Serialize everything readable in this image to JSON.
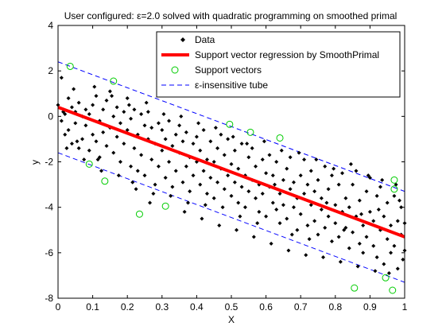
{
  "chart_data": {
    "type": "scatter",
    "title": "User configured: ε=2.0 solved with quadratic programming on smoothed primal",
    "xlabel": "X",
    "ylabel": "y",
    "xlim": [
      0,
      1
    ],
    "ylim": [
      -8,
      4
    ],
    "xticks": [
      "0",
      "0.1",
      "0.2",
      "0.3",
      "0.4",
      "0.5",
      "0.6",
      "0.7",
      "0.8",
      "0.9",
      "1"
    ],
    "yticks": [
      "4",
      "2",
      "0",
      "-2",
      "-4",
      "-6",
      "-8"
    ],
    "grid": false,
    "legend_position": "top-right",
    "legend": [
      "Data",
      "Support vector regression by SmoothPrimal",
      "Support vectors",
      "ε-insensitive tube"
    ],
    "regression_line": {
      "x": [
        0,
        1
      ],
      "y": [
        0.4,
        -5.3
      ],
      "color": "#ff0000"
    },
    "tube_upper": {
      "x": [
        0,
        1
      ],
      "y": [
        2.4,
        -3.3
      ],
      "color": "#0000ff"
    },
    "tube_lower": {
      "x": [
        0,
        1
      ],
      "y": [
        -1.6,
        -7.3
      ],
      "color": "#0000ff"
    },
    "support_vectors": {
      "color": "#00cc00",
      "points": [
        [
          0.035,
          2.2
        ],
        [
          0.16,
          1.55
        ],
        [
          0.09,
          -2.1
        ],
        [
          0.135,
          -2.85
        ],
        [
          0.235,
          -4.3
        ],
        [
          0.31,
          -3.95
        ],
        [
          0.495,
          -0.35
        ],
        [
          0.555,
          -0.7
        ],
        [
          0.64,
          -0.95
        ],
        [
          0.855,
          -7.55
        ],
        [
          0.945,
          -7.1
        ],
        [
          0.965,
          -7.65
        ],
        [
          0.97,
          -2.8
        ],
        [
          0.97,
          -3.2
        ]
      ]
    },
    "data_points": [
      [
        0.0,
        0.5
      ],
      [
        0.01,
        1.7
      ],
      [
        0.01,
        -0.2
      ],
      [
        0.015,
        0.2
      ],
      [
        0.02,
        -0.8
      ],
      [
        0.02,
        0.1
      ],
      [
        0.03,
        -0.6
      ],
      [
        0.03,
        0.8
      ],
      [
        0.04,
        -1.2
      ],
      [
        0.04,
        0.4
      ],
      [
        0.05,
        -0.3
      ],
      [
        0.05,
        0.2
      ],
      [
        0.06,
        -1.4
      ],
      [
        0.06,
        0.6
      ],
      [
        0.07,
        0.0
      ],
      [
        0.07,
        -1.0
      ],
      [
        0.08,
        -0.4
      ],
      [
        0.08,
        0.3
      ],
      [
        0.09,
        -1.5
      ],
      [
        0.09,
        0.1
      ],
      [
        0.1,
        -0.8
      ],
      [
        0.1,
        0.5
      ],
      [
        0.11,
        -1.1
      ],
      [
        0.11,
        0.9
      ],
      [
        0.12,
        -0.2
      ],
      [
        0.12,
        -1.8
      ],
      [
        0.13,
        0.3
      ],
      [
        0.13,
        -0.7
      ],
      [
        0.14,
        -1.3
      ],
      [
        0.14,
        0.7
      ],
      [
        0.15,
        -0.5
      ],
      [
        0.15,
        1.1
      ],
      [
        0.16,
        -1.6
      ],
      [
        0.16,
        0.0
      ],
      [
        0.17,
        -0.9
      ],
      [
        0.17,
        0.4
      ],
      [
        0.18,
        -2.0
      ],
      [
        0.18,
        -0.3
      ],
      [
        0.19,
        0.2
      ],
      [
        0.19,
        -1.2
      ],
      [
        0.2,
        -0.6
      ],
      [
        0.2,
        0.8
      ],
      [
        0.21,
        -2.2
      ],
      [
        0.21,
        -0.1
      ],
      [
        0.22,
        -1.4
      ],
      [
        0.22,
        0.3
      ],
      [
        0.23,
        -0.8
      ],
      [
        0.23,
        -2.4
      ],
      [
        0.24,
        0.1
      ],
      [
        0.24,
        -1.7
      ],
      [
        0.25,
        -0.4
      ],
      [
        0.25,
        -2.6
      ],
      [
        0.26,
        -1.0
      ],
      [
        0.26,
        0.2
      ],
      [
        0.27,
        -1.9
      ],
      [
        0.27,
        -0.5
      ],
      [
        0.28,
        -3.0
      ],
      [
        0.28,
        -1.2
      ],
      [
        0.29,
        -0.3
      ],
      [
        0.29,
        -2.2
      ],
      [
        0.3,
        -1.5
      ],
      [
        0.3,
        -0.6
      ],
      [
        0.31,
        -2.7
      ],
      [
        0.31,
        -1.0
      ],
      [
        0.32,
        -0.2
      ],
      [
        0.32,
        -2.0
      ],
      [
        0.33,
        -1.3
      ],
      [
        0.33,
        -3.1
      ],
      [
        0.34,
        -0.8
      ],
      [
        0.34,
        -2.4
      ],
      [
        0.35,
        -1.6
      ],
      [
        0.35,
        -0.4
      ],
      [
        0.36,
        -2.9
      ],
      [
        0.36,
        -1.1
      ],
      [
        0.37,
        -2.2
      ],
      [
        0.37,
        -0.7
      ],
      [
        0.38,
        -1.8
      ],
      [
        0.38,
        -3.3
      ],
      [
        0.39,
        -1.2
      ],
      [
        0.39,
        -2.6
      ],
      [
        0.4,
        -0.9
      ],
      [
        0.4,
        -2.0
      ],
      [
        0.41,
        -3.0
      ],
      [
        0.41,
        -1.5
      ],
      [
        0.42,
        -2.4
      ],
      [
        0.42,
        -0.6
      ],
      [
        0.43,
        -1.9
      ],
      [
        0.43,
        -3.4
      ],
      [
        0.44,
        -1.1
      ],
      [
        0.44,
        -2.7
      ],
      [
        0.45,
        -2.0
      ],
      [
        0.45,
        -3.6
      ],
      [
        0.46,
        -1.4
      ],
      [
        0.46,
        -2.9
      ],
      [
        0.47,
        -0.8
      ],
      [
        0.47,
        -2.3
      ],
      [
        0.48,
        -3.2
      ],
      [
        0.48,
        -1.7
      ],
      [
        0.49,
        -2.6
      ],
      [
        0.49,
        -1.0
      ],
      [
        0.5,
        -3.5
      ],
      [
        0.5,
        -2.1
      ],
      [
        0.51,
        -1.5
      ],
      [
        0.51,
        -2.9
      ],
      [
        0.52,
        -3.8
      ],
      [
        0.52,
        -2.3
      ],
      [
        0.53,
        -1.2
      ],
      [
        0.53,
        -3.1
      ],
      [
        0.54,
        -2.6
      ],
      [
        0.54,
        -4.0
      ],
      [
        0.55,
        -1.8
      ],
      [
        0.55,
        -3.3
      ],
      [
        0.56,
        -2.8
      ],
      [
        0.56,
        -1.4
      ],
      [
        0.57,
        -3.6
      ],
      [
        0.57,
        -2.2
      ],
      [
        0.58,
        -4.2
      ],
      [
        0.58,
        -3.0
      ],
      [
        0.59,
        -1.9
      ],
      [
        0.59,
        -3.4
      ],
      [
        0.6,
        -2.5
      ],
      [
        0.6,
        -4.4
      ],
      [
        0.61,
        -3.1
      ],
      [
        0.61,
        -1.7
      ],
      [
        0.62,
        -3.8
      ],
      [
        0.62,
        -2.6
      ],
      [
        0.63,
        -4.1
      ],
      [
        0.63,
        -2.0
      ],
      [
        0.64,
        -3.4
      ],
      [
        0.64,
        -4.7
      ],
      [
        0.65,
        -2.8
      ],
      [
        0.65,
        -3.9
      ],
      [
        0.66,
        -2.3
      ],
      [
        0.66,
        -4.5
      ],
      [
        0.67,
        -3.2
      ],
      [
        0.67,
        -1.8
      ],
      [
        0.68,
        -4.0
      ],
      [
        0.68,
        -2.9
      ],
      [
        0.69,
        -3.6
      ],
      [
        0.69,
        -5.0
      ],
      [
        0.7,
        -2.6
      ],
      [
        0.7,
        -4.3
      ],
      [
        0.71,
        -3.4
      ],
      [
        0.71,
        -1.9
      ],
      [
        0.72,
        -4.8
      ],
      [
        0.72,
        -3.0
      ],
      [
        0.73,
        -3.9
      ],
      [
        0.73,
        -2.4
      ],
      [
        0.74,
        -4.6
      ],
      [
        0.74,
        -3.3
      ],
      [
        0.75,
        -5.2
      ],
      [
        0.75,
        -2.8
      ],
      [
        0.76,
        -4.1
      ],
      [
        0.76,
        -3.6
      ],
      [
        0.77,
        -2.2
      ],
      [
        0.77,
        -4.9
      ],
      [
        0.78,
        -3.2
      ],
      [
        0.78,
        -4.4
      ],
      [
        0.79,
        -5.5
      ],
      [
        0.79,
        -2.6
      ],
      [
        0.8,
        -3.9
      ],
      [
        0.8,
        -4.7
      ],
      [
        0.81,
        -3.0
      ],
      [
        0.81,
        -5.3
      ],
      [
        0.82,
        -4.2
      ],
      [
        0.82,
        -2.5
      ],
      [
        0.83,
        -4.9
      ],
      [
        0.83,
        -3.6
      ],
      [
        0.84,
        -5.8
      ],
      [
        0.84,
        -4.0
      ],
      [
        0.85,
        -3.0
      ],
      [
        0.85,
        -5.1
      ],
      [
        0.86,
        -4.4
      ],
      [
        0.86,
        -2.4
      ],
      [
        0.87,
        -5.6
      ],
      [
        0.87,
        -3.7
      ],
      [
        0.88,
        -4.8
      ],
      [
        0.88,
        -6.0
      ],
      [
        0.89,
        -3.3
      ],
      [
        0.89,
        -5.3
      ],
      [
        0.9,
        -4.2
      ],
      [
        0.9,
        -2.7
      ],
      [
        0.91,
        -5.7
      ],
      [
        0.91,
        -4.6
      ],
      [
        0.92,
        -3.5
      ],
      [
        0.92,
        -6.2
      ],
      [
        0.93,
        -5.0
      ],
      [
        0.93,
        -3.1
      ],
      [
        0.94,
        -4.4
      ],
      [
        0.94,
        -6.5
      ],
      [
        0.95,
        -5.4
      ],
      [
        0.95,
        -3.8
      ],
      [
        0.96,
        -4.8
      ],
      [
        0.96,
        -6.0
      ],
      [
        0.97,
        -3.5
      ],
      [
        0.97,
        -5.7
      ],
      [
        0.98,
        -4.6
      ],
      [
        0.98,
        -6.7
      ],
      [
        0.99,
        -5.2
      ],
      [
        0.99,
        -4.0
      ],
      [
        1.0,
        -5.9
      ],
      [
        1.0,
        -4.7
      ],
      [
        0.995,
        -6.3
      ],
      [
        0.985,
        -3.7
      ],
      [
        0.925,
        -4.1
      ],
      [
        0.875,
        -4.3
      ],
      [
        0.825,
        -5.0
      ],
      [
        0.775,
        -3.8
      ],
      [
        0.725,
        -5.4
      ],
      [
        0.675,
        -5.2
      ],
      [
        0.625,
        -3.0
      ],
      [
        0.575,
        -4.7
      ],
      [
        0.525,
        -4.4
      ],
      [
        0.475,
        -4.0
      ],
      [
        0.425,
        -3.9
      ],
      [
        0.375,
        -3.8
      ],
      [
        0.325,
        -3.5
      ],
      [
        0.275,
        -3.4
      ],
      [
        0.225,
        -3.2
      ],
      [
        0.175,
        -2.6
      ],
      [
        0.125,
        -2.4
      ],
      [
        0.075,
        -1.9
      ],
      [
        0.025,
        -1.4
      ],
      [
        0.045,
        1.2
      ],
      [
        0.105,
        1.3
      ],
      [
        0.155,
        0.9
      ],
      [
        0.205,
        0.5
      ],
      [
        0.255,
        0.6
      ],
      [
        0.305,
        0.1
      ],
      [
        0.355,
        0.0
      ],
      [
        0.405,
        -0.3
      ],
      [
        0.455,
        -0.5
      ],
      [
        0.505,
        -0.9
      ],
      [
        0.545,
        -1.2
      ],
      [
        0.595,
        -1.1
      ],
      [
        0.645,
        -1.5
      ],
      [
        0.695,
        -1.6
      ],
      [
        0.745,
        -1.9
      ],
      [
        0.795,
        -2.3
      ],
      [
        0.845,
        -2.1
      ],
      [
        0.895,
        -2.6
      ],
      [
        0.935,
        -2.8
      ],
      [
        0.975,
        -3.0
      ],
      [
        0.215,
        -2.9
      ],
      [
        0.265,
        -3.8
      ],
      [
        0.365,
        -4.2
      ],
      [
        0.415,
        -4.5
      ],
      [
        0.465,
        -4.8
      ],
      [
        0.515,
        -5.0
      ],
      [
        0.565,
        -5.3
      ],
      [
        0.615,
        -5.6
      ],
      [
        0.665,
        -5.9
      ],
      [
        0.715,
        -6.1
      ],
      [
        0.765,
        -6.2
      ],
      [
        0.815,
        -6.4
      ],
      [
        0.865,
        -6.6
      ],
      [
        0.915,
        -6.8
      ],
      [
        0.955,
        -6.9
      ],
      [
        0.055,
        -1.1
      ],
      [
        0.115,
        -1.9
      ]
    ]
  }
}
